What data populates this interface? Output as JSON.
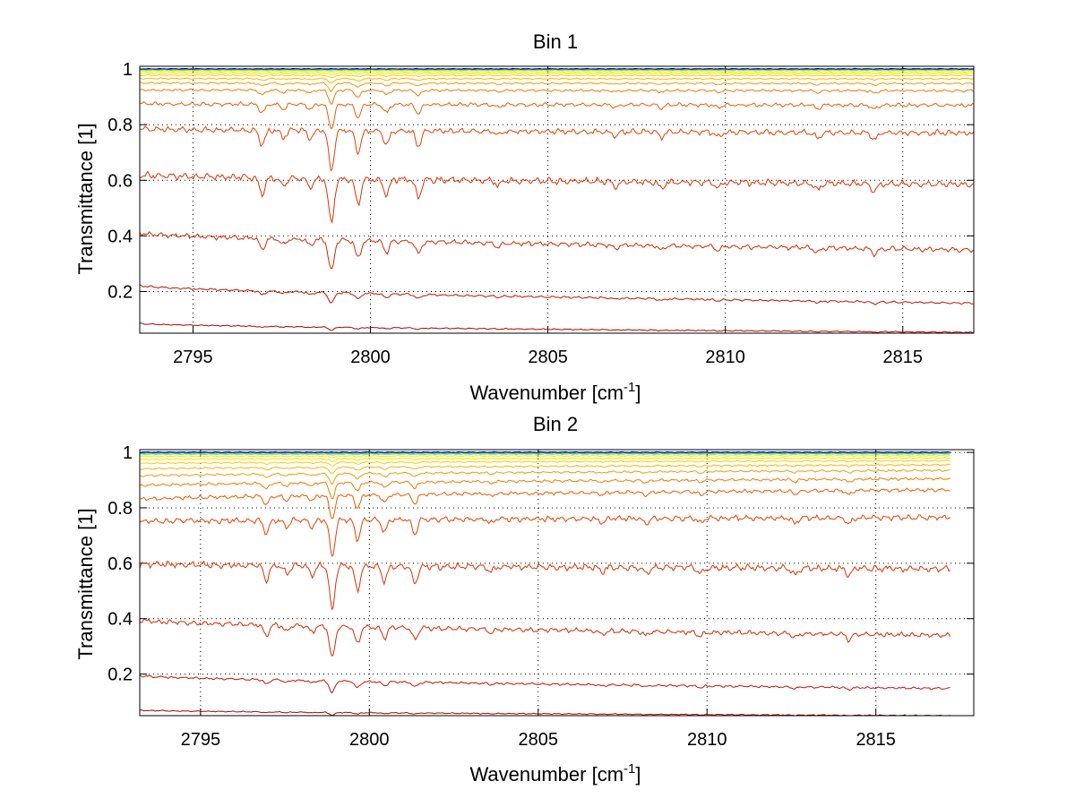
{
  "chart_data": [
    {
      "type": "line",
      "title": "Bin 1",
      "xlabel": "Wavenumber [cm",
      "xlabel_sup": "-1",
      "xlabel_close": "]",
      "ylabel": "Transmittance [1]",
      "xlim": [
        2793.5,
        2817.0
      ],
      "ylim": [
        0.05,
        1.01
      ],
      "xticks": [
        2795,
        2800,
        2805,
        2810,
        2815
      ],
      "xtick_labels": [
        "2795",
        "2800",
        "2805",
        "2810",
        "2815"
      ],
      "yticks": [
        0.2,
        0.4,
        0.6,
        0.8,
        1.0
      ],
      "ytick_labels": [
        "0.2",
        "0.4",
        "0.6",
        "0.8",
        "1"
      ],
      "grid": true,
      "x_end": 2817.0,
      "lines": [
        {
          "start": 0.085,
          "end": 0.053,
          "depth": 0.012,
          "color": "#b00000"
        },
        {
          "start": 0.222,
          "end": 0.158,
          "depth": 0.04,
          "color": "#c41400"
        },
        {
          "start": 0.41,
          "end": 0.35,
          "depth": 0.12,
          "color": "#d42a00"
        },
        {
          "start": 0.62,
          "end": 0.585,
          "depth": 0.17,
          "color": "#e03000"
        },
        {
          "start": 0.785,
          "end": 0.77,
          "depth": 0.15,
          "color": "#e84000"
        },
        {
          "start": 0.875,
          "end": 0.87,
          "depth": 0.09,
          "color": "#f05a00"
        },
        {
          "start": 0.925,
          "end": 0.922,
          "depth": 0.05,
          "color": "#f57a00"
        },
        {
          "start": 0.95,
          "end": 0.948,
          "depth": 0.03,
          "color": "#f89a00"
        },
        {
          "start": 0.966,
          "end": 0.965,
          "depth": 0.018,
          "color": "#fbb400"
        },
        {
          "start": 0.978,
          "end": 0.977,
          "depth": 0.01,
          "color": "#ffcc00"
        },
        {
          "start": 0.986,
          "end": 0.985,
          "depth": 0.006,
          "color": "#ffe000"
        },
        {
          "start": 0.992,
          "end": 0.991,
          "depth": 0.003,
          "color": "#e8f000"
        },
        {
          "start": 0.996,
          "end": 0.996,
          "depth": 0.002,
          "color": "#90e040"
        },
        {
          "start": 0.999,
          "end": 0.999,
          "depth": 0.001,
          "color": "#30c0a0"
        },
        {
          "start": 1.0,
          "end": 1.0,
          "depth": 0.0005,
          "color": "#0060ff"
        },
        {
          "start": 1.001,
          "end": 1.001,
          "depth": 0.0,
          "color": "#000090"
        }
      ]
    },
    {
      "type": "line",
      "title": "Bin 2",
      "xlabel": "Wavenumber [cm",
      "xlabel_sup": "-1",
      "xlabel_close": "]",
      "ylabel": "Transmittance [1]",
      "xlim": [
        2793.2,
        2817.9
      ],
      "ylim": [
        0.05,
        1.01
      ],
      "xticks": [
        2795,
        2800,
        2805,
        2810,
        2815
      ],
      "xtick_labels": [
        "2795",
        "2800",
        "2805",
        "2810",
        "2815"
      ],
      "yticks": [
        0.2,
        0.4,
        0.6,
        0.8,
        1.0
      ],
      "ytick_labels": [
        "0.2",
        "0.4",
        "0.6",
        "0.8",
        "1"
      ],
      "grid": true,
      "x_end": 2817.2,
      "lines": [
        {
          "start": 0.07,
          "end": 0.05,
          "depth": 0.01,
          "color": "#b00000"
        },
        {
          "start": 0.195,
          "end": 0.148,
          "depth": 0.045,
          "color": "#c41400"
        },
        {
          "start": 0.395,
          "end": 0.34,
          "depth": 0.12,
          "color": "#d42a00"
        },
        {
          "start": 0.598,
          "end": 0.58,
          "depth": 0.17,
          "color": "#e03000"
        },
        {
          "start": 0.75,
          "end": 0.765,
          "depth": 0.14,
          "color": "#e84000"
        },
        {
          "start": 0.83,
          "end": 0.865,
          "depth": 0.09,
          "color": "#f05a00"
        },
        {
          "start": 0.88,
          "end": 0.905,
          "depth": 0.06,
          "color": "#f57a00"
        },
        {
          "start": 0.915,
          "end": 0.935,
          "depth": 0.04,
          "color": "#f89a00"
        },
        {
          "start": 0.94,
          "end": 0.955,
          "depth": 0.025,
          "color": "#fbb400"
        },
        {
          "start": 0.96,
          "end": 0.97,
          "depth": 0.015,
          "color": "#ffcc00"
        },
        {
          "start": 0.975,
          "end": 0.98,
          "depth": 0.01,
          "color": "#ffe000"
        },
        {
          "start": 0.986,
          "end": 0.988,
          "depth": 0.005,
          "color": "#e8f000"
        },
        {
          "start": 0.993,
          "end": 0.994,
          "depth": 0.003,
          "color": "#90e040"
        },
        {
          "start": 0.997,
          "end": 0.997,
          "depth": 0.002,
          "color": "#30c0a0"
        },
        {
          "start": 1.0,
          "end": 1.0,
          "depth": 0.001,
          "color": "#0060ff"
        },
        {
          "start": 1.001,
          "end": 1.001,
          "depth": 0.0,
          "color": "#000090"
        }
      ]
    }
  ],
  "absorption_lines": [
    {
      "x": 2796.95,
      "strength": 0.35
    },
    {
      "x": 2797.55,
      "strength": 0.18
    },
    {
      "x": 2798.3,
      "strength": 0.2
    },
    {
      "x": 2798.9,
      "strength": 1.0
    },
    {
      "x": 2799.65,
      "strength": 0.55
    },
    {
      "x": 2800.45,
      "strength": 0.35
    },
    {
      "x": 2801.35,
      "strength": 0.4
    },
    {
      "x": 2803.6,
      "strength": 0.12
    },
    {
      "x": 2806.9,
      "strength": 0.12
    },
    {
      "x": 2808.2,
      "strength": 0.15
    },
    {
      "x": 2809.8,
      "strength": 0.15
    },
    {
      "x": 2812.6,
      "strength": 0.18
    },
    {
      "x": 2814.2,
      "strength": 0.22
    }
  ]
}
